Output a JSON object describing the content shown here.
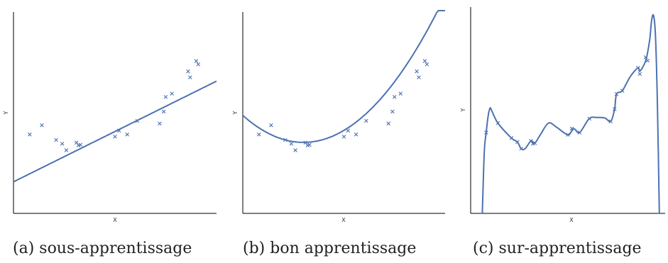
{
  "colors": {
    "series": "#4c72b0",
    "axis": "#000000"
  },
  "chart_data": [
    {
      "type": "scatter",
      "xlabel": "X",
      "ylabel": "Y",
      "caption": "(a) sous-apprentissage",
      "xlim": [
        0,
        1
      ],
      "ylim": [
        -0.5,
        3.2
      ],
      "points": [
        [
          0.08,
          0.95
        ],
        [
          0.14,
          1.12
        ],
        [
          0.21,
          0.85
        ],
        [
          0.24,
          0.78
        ],
        [
          0.26,
          0.66
        ],
        [
          0.31,
          0.8
        ],
        [
          0.32,
          0.75
        ],
        [
          0.33,
          0.76
        ],
        [
          0.5,
          0.91
        ],
        [
          0.52,
          1.02
        ],
        [
          0.56,
          0.95
        ],
        [
          0.61,
          1.2
        ],
        [
          0.72,
          1.15
        ],
        [
          0.74,
          1.37
        ],
        [
          0.75,
          1.64
        ],
        [
          0.78,
          1.7
        ],
        [
          0.86,
          2.11
        ],
        [
          0.87,
          2.0
        ],
        [
          0.9,
          2.3
        ],
        [
          0.91,
          2.24
        ]
      ],
      "fit": {
        "kind": "poly",
        "coeffs": [
          0.08,
          1.85
        ]
      }
    },
    {
      "type": "scatter",
      "xlabel": "X",
      "ylabel": "Y",
      "caption": "(b) bon apprentissage",
      "xlim": [
        0,
        1
      ],
      "ylim": [
        -0.5,
        3.2
      ],
      "points": [
        [
          0.08,
          0.95
        ],
        [
          0.14,
          1.12
        ],
        [
          0.21,
          0.85
        ],
        [
          0.24,
          0.78
        ],
        [
          0.26,
          0.66
        ],
        [
          0.31,
          0.8
        ],
        [
          0.32,
          0.75
        ],
        [
          0.33,
          0.76
        ],
        [
          0.5,
          0.91
        ],
        [
          0.52,
          1.02
        ],
        [
          0.56,
          0.95
        ],
        [
          0.61,
          1.2
        ],
        [
          0.72,
          1.15
        ],
        [
          0.74,
          1.37
        ],
        [
          0.75,
          1.64
        ],
        [
          0.78,
          1.7
        ],
        [
          0.86,
          2.11
        ],
        [
          0.87,
          2.0
        ],
        [
          0.9,
          2.3
        ],
        [
          0.91,
          2.24
        ]
      ],
      "fit": {
        "kind": "poly",
        "coeffs": [
          1.3,
          -3.3,
          5.5
        ]
      }
    },
    {
      "type": "scatter",
      "xlabel": "X",
      "ylabel": "Y",
      "caption": "(c) sur-apprentissage",
      "xlim": [
        0,
        1
      ],
      "ylim": [
        -0.5,
        3.2
      ],
      "points": [
        [
          0.08,
          0.95
        ],
        [
          0.14,
          1.12
        ],
        [
          0.21,
          0.85
        ],
        [
          0.24,
          0.78
        ],
        [
          0.26,
          0.66
        ],
        [
          0.31,
          0.8
        ],
        [
          0.32,
          0.75
        ],
        [
          0.33,
          0.76
        ],
        [
          0.5,
          0.91
        ],
        [
          0.52,
          1.02
        ],
        [
          0.56,
          0.95
        ],
        [
          0.61,
          1.2
        ],
        [
          0.72,
          1.15
        ],
        [
          0.74,
          1.37
        ],
        [
          0.75,
          1.64
        ],
        [
          0.78,
          1.7
        ],
        [
          0.86,
          2.11
        ],
        [
          0.87,
          2.0
        ],
        [
          0.9,
          2.3
        ],
        [
          0.91,
          2.24
        ]
      ],
      "fit": {
        "kind": "interp",
        "points": [
          [
            0.06,
            -0.5
          ],
          [
            0.07,
            0.6
          ],
          [
            0.08,
            0.95
          ],
          [
            0.09,
            1.25
          ],
          [
            0.1,
            1.39
          ],
          [
            0.11,
            1.33
          ],
          [
            0.14,
            1.12
          ],
          [
            0.21,
            0.85
          ],
          [
            0.24,
            0.78
          ],
          [
            0.26,
            0.66
          ],
          [
            0.28,
            0.66
          ],
          [
            0.31,
            0.8
          ],
          [
            0.33,
            0.76
          ],
          [
            0.36,
            0.92
          ],
          [
            0.4,
            1.12
          ],
          [
            0.44,
            1.05
          ],
          [
            0.5,
            0.91
          ],
          [
            0.53,
            1.02
          ],
          [
            0.56,
            0.95
          ],
          [
            0.61,
            1.2
          ],
          [
            0.65,
            1.22
          ],
          [
            0.69,
            1.21
          ],
          [
            0.72,
            1.15
          ],
          [
            0.74,
            1.37
          ],
          [
            0.75,
            1.64
          ],
          [
            0.78,
            1.7
          ],
          [
            0.82,
            1.95
          ],
          [
            0.86,
            2.11
          ],
          [
            0.87,
            2.05
          ],
          [
            0.9,
            2.24
          ],
          [
            0.92,
            2.6
          ],
          [
            0.93,
            2.95
          ],
          [
            0.94,
            3.05
          ],
          [
            0.95,
            2.7
          ],
          [
            0.96,
            1.5
          ],
          [
            0.97,
            -0.5
          ]
        ]
      }
    }
  ]
}
